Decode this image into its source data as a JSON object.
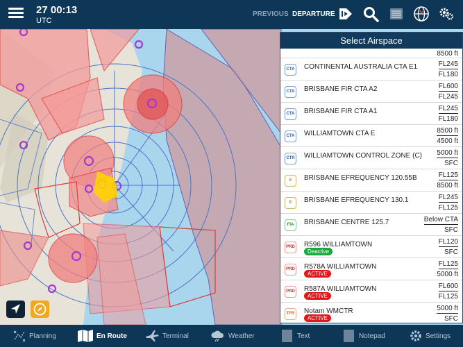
{
  "topbar": {
    "time": "27 00:13",
    "timezone": "UTC",
    "previous_label": "PREVIOUS",
    "departure_label": "DEPARTURE"
  },
  "panel": {
    "title": "Select Airspace",
    "top_partial_lower": "8500 ft",
    "rows": [
      {
        "badge": "CTA",
        "kind": "cta",
        "name": "CONTINENTAL AUSTRALIA CTA E1",
        "upper": "FL245",
        "lower": "FL180",
        "status": ""
      },
      {
        "badge": "CTA",
        "kind": "cta",
        "name": "BRISBANE FIR CTA A2",
        "upper": "FL600",
        "lower": "FL245",
        "status": ""
      },
      {
        "badge": "CTA",
        "kind": "cta",
        "name": "BRISBANE FIR CTA A1",
        "upper": "FL245",
        "lower": "FL180",
        "status": ""
      },
      {
        "badge": "CTA",
        "kind": "cta",
        "name": "WILLIAMTOWN CTA E",
        "upper": "8500 ft",
        "lower": "4500 ft",
        "status": ""
      },
      {
        "badge": "CTR",
        "kind": "cta",
        "name": "WILLIAMTOWN CONTROL ZONE (C)",
        "upper": "5000 ft",
        "lower": "SFC",
        "status": ""
      },
      {
        "badge": "E",
        "kind": "e",
        "name": "BRISBANE EFREQUENCY 120.55B",
        "upper": "FL125",
        "lower": "8500 ft",
        "status": ""
      },
      {
        "badge": "E",
        "kind": "e",
        "name": "BRISBANE EFREQUENCY 130.1",
        "upper": "FL245",
        "lower": "FL125",
        "status": ""
      },
      {
        "badge": "FIA",
        "kind": "fia",
        "name": "BRISBANE CENTRE 125.7",
        "upper": "Below CTA",
        "lower": "SFC",
        "status": ""
      },
      {
        "badge": "PRD",
        "kind": "prd",
        "name": "R596 WILLIAMTOWN",
        "upper": "FL120",
        "lower": "SFC",
        "status": "Deactive"
      },
      {
        "badge": "PRD",
        "kind": "prd",
        "name": "R578A WILLIAMTOWN",
        "upper": "FL125",
        "lower": "5000 ft",
        "status": "ACTIVE"
      },
      {
        "badge": "PRD",
        "kind": "prd",
        "name": "R587A WILLIAMTOWN",
        "upper": "FL600",
        "lower": "FL125",
        "status": "ACTIVE"
      },
      {
        "badge": "TFR",
        "kind": "tfr",
        "name": "Notam WMCTR",
        "upper": "5000 ft",
        "lower": "SFC",
        "status": "ACTIVE"
      }
    ]
  },
  "bottom_nav": [
    {
      "label": "Planning",
      "icon": "planning-icon",
      "active": false
    },
    {
      "label": "En Route",
      "icon": "map-icon",
      "active": true
    },
    {
      "label": "Terminal",
      "icon": "airplane-icon",
      "active": false
    },
    {
      "label": "Weather",
      "icon": "weather-icon",
      "active": false
    },
    {
      "label": "Text",
      "icon": "text-icon",
      "active": false
    },
    {
      "label": "Notepad",
      "icon": "notepad-icon",
      "active": false
    },
    {
      "label": "Settings",
      "icon": "settings-icon",
      "active": false
    }
  ],
  "colors": {
    "bar": "#0d3657",
    "restricted": "#e23b3b",
    "control_zone": "#8fc3df",
    "active": "#e01818",
    "deactive": "#19a83a"
  }
}
